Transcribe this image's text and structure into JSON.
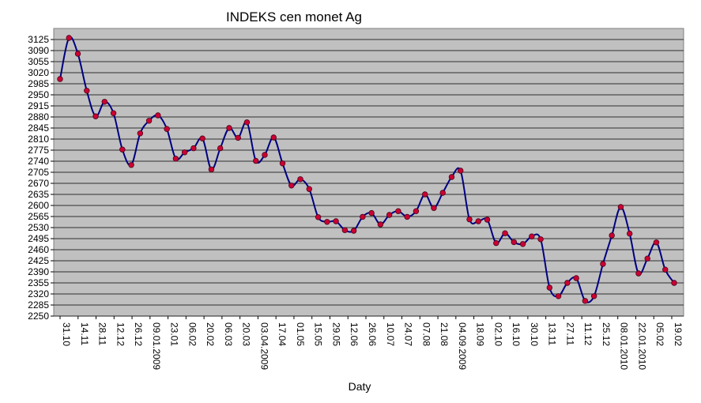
{
  "chart_data": {
    "type": "line",
    "title": "INDEKS cen monet Ag",
    "xlabel": "Daty",
    "ylabel": "",
    "ylim": [
      2250,
      3160
    ],
    "yticks": [
      2250,
      2285,
      2320,
      2355,
      2390,
      2425,
      2460,
      2495,
      2530,
      2565,
      2600,
      2635,
      2670,
      2705,
      2740,
      2775,
      2810,
      2845,
      2880,
      2915,
      2950,
      2985,
      3020,
      3055,
      3090,
      3125
    ],
    "xtick_labels": [
      "31.10",
      "14.11",
      "28.11",
      "12.12",
      "26.12",
      "09.01.2009",
      "23.01",
      "06.02",
      "20.02",
      "06.03",
      "20.03",
      "03.04.2009",
      "17.04",
      "01.05",
      "15.05",
      "29.05",
      "12.06",
      "26.06",
      "10.07",
      "24.07",
      "07.08",
      "21.08",
      "04.09.2009",
      "18.09",
      "02.10",
      "16.10",
      "30.10",
      "13.11",
      "27.11",
      "11.12",
      "25.12",
      "08.01.2010",
      "22.01.2010",
      "05.02",
      "19.02"
    ],
    "grid": true,
    "background": "#c0c0c0",
    "line_color": "#000080",
    "marker_color": "#cc0033",
    "series": [
      {
        "name": "",
        "values": [
          3000,
          3130,
          3080,
          2963,
          2882,
          2928,
          2892,
          2777,
          2728,
          2828,
          2868,
          2885,
          2842,
          2748,
          2768,
          2781,
          2812,
          2714,
          2781,
          2845,
          2814,
          2863,
          2741,
          2760,
          2815,
          2733,
          2663,
          2683,
          2652,
          2563,
          2548,
          2550,
          2522,
          2520,
          2564,
          2576,
          2540,
          2570,
          2582,
          2564,
          2582,
          2635,
          2592,
          2640,
          2690,
          2710,
          2556,
          2550,
          2555,
          2481,
          2512,
          2484,
          2478,
          2502,
          2493,
          2340,
          2313,
          2355,
          2370,
          2298,
          2313,
          2415,
          2505,
          2595,
          2511,
          2385,
          2432,
          2483,
          2397,
          2355
        ]
      }
    ]
  }
}
